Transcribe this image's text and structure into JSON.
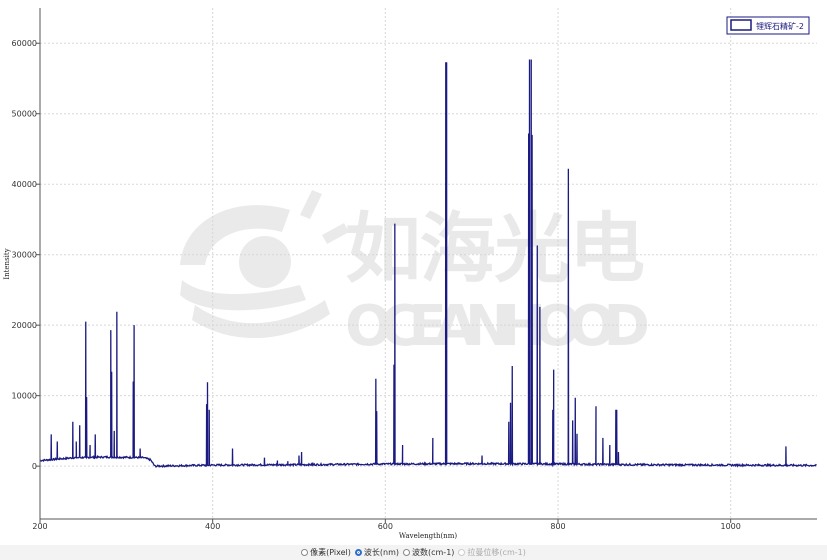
{
  "chart_data": {
    "type": "line",
    "xlabel": "Wavelength(nm)",
    "ylabel": "Intensity",
    "xlim": [
      200,
      1100
    ],
    "ylim": [
      -7500,
      65000
    ],
    "xticks": [
      200,
      400,
      600,
      800,
      1000
    ],
    "yticks": [
      0,
      10000,
      20000,
      30000,
      40000,
      50000,
      60000
    ],
    "grid": true,
    "legend_position": "top-right",
    "series": [
      {
        "name": "锂辉石精矿-2",
        "color": "#1a1a80",
        "baseline": [
          [
            200,
            800
          ],
          [
            240,
            1200
          ],
          [
            280,
            1300
          ],
          [
            320,
            1200
          ],
          [
            328,
            900
          ],
          [
            333,
            0
          ],
          [
            400,
            150
          ],
          [
            500,
            200
          ],
          [
            600,
            300
          ],
          [
            700,
            350
          ],
          [
            800,
            300
          ],
          [
            900,
            200
          ],
          [
            1000,
            150
          ],
          [
            1100,
            100
          ]
        ],
        "peaks": [
          [
            213,
            4500
          ],
          [
            220,
            3500
          ],
          [
            238,
            6300
          ],
          [
            242,
            3500
          ],
          [
            246,
            5800
          ],
          [
            253,
            20500
          ],
          [
            254,
            9800
          ],
          [
            258,
            3000
          ],
          [
            264,
            4500
          ],
          [
            282,
            19300
          ],
          [
            283,
            13400
          ],
          [
            286,
            5000
          ],
          [
            289,
            21900
          ],
          [
            308,
            12000
          ],
          [
            309,
            20000
          ],
          [
            316,
            2500
          ],
          [
            393,
            8800
          ],
          [
            394,
            11900
          ],
          [
            396,
            8000
          ],
          [
            423,
            2500
          ],
          [
            460,
            1200
          ],
          [
            475,
            800
          ],
          [
            487,
            700
          ],
          [
            500,
            1500
          ],
          [
            503,
            2000
          ],
          [
            516,
            500
          ],
          [
            589,
            12400
          ],
          [
            590,
            7800
          ],
          [
            610,
            14400
          ],
          [
            611,
            34400
          ],
          [
            620,
            3000
          ],
          [
            655,
            4000
          ],
          [
            670,
            57300
          ],
          [
            671,
            57300
          ],
          [
            712,
            1500
          ],
          [
            743,
            6300
          ],
          [
            745,
            9000
          ],
          [
            747,
            14200
          ],
          [
            766,
            47200
          ],
          [
            767,
            57700
          ],
          [
            769,
            57700
          ],
          [
            770,
            47000
          ],
          [
            776,
            31300
          ],
          [
            779,
            22600
          ],
          [
            794,
            8000
          ],
          [
            795,
            13700
          ],
          [
            812,
            42200
          ],
          [
            817,
            6500
          ],
          [
            820,
            9700
          ],
          [
            822,
            4600
          ],
          [
            844,
            8500
          ],
          [
            852,
            4000
          ],
          [
            860,
            3000
          ],
          [
            867,
            8000
          ],
          [
            868,
            8000
          ],
          [
            870,
            2000
          ],
          [
            1064,
            2800
          ]
        ]
      }
    ]
  },
  "watermark": {
    "brand_cn": "如海光电",
    "brand_en": "OCEANHOOD"
  },
  "bottom_bar": {
    "options": [
      {
        "label": "像素(Pixel)",
        "checked": false,
        "disabled": false
      },
      {
        "label": "波长(nm)",
        "checked": true,
        "disabled": false
      },
      {
        "label": "波数(cm-1)",
        "checked": false,
        "disabled": false
      },
      {
        "label": "拉曼位移(cm-1)",
        "checked": false,
        "disabled": true
      }
    ]
  }
}
